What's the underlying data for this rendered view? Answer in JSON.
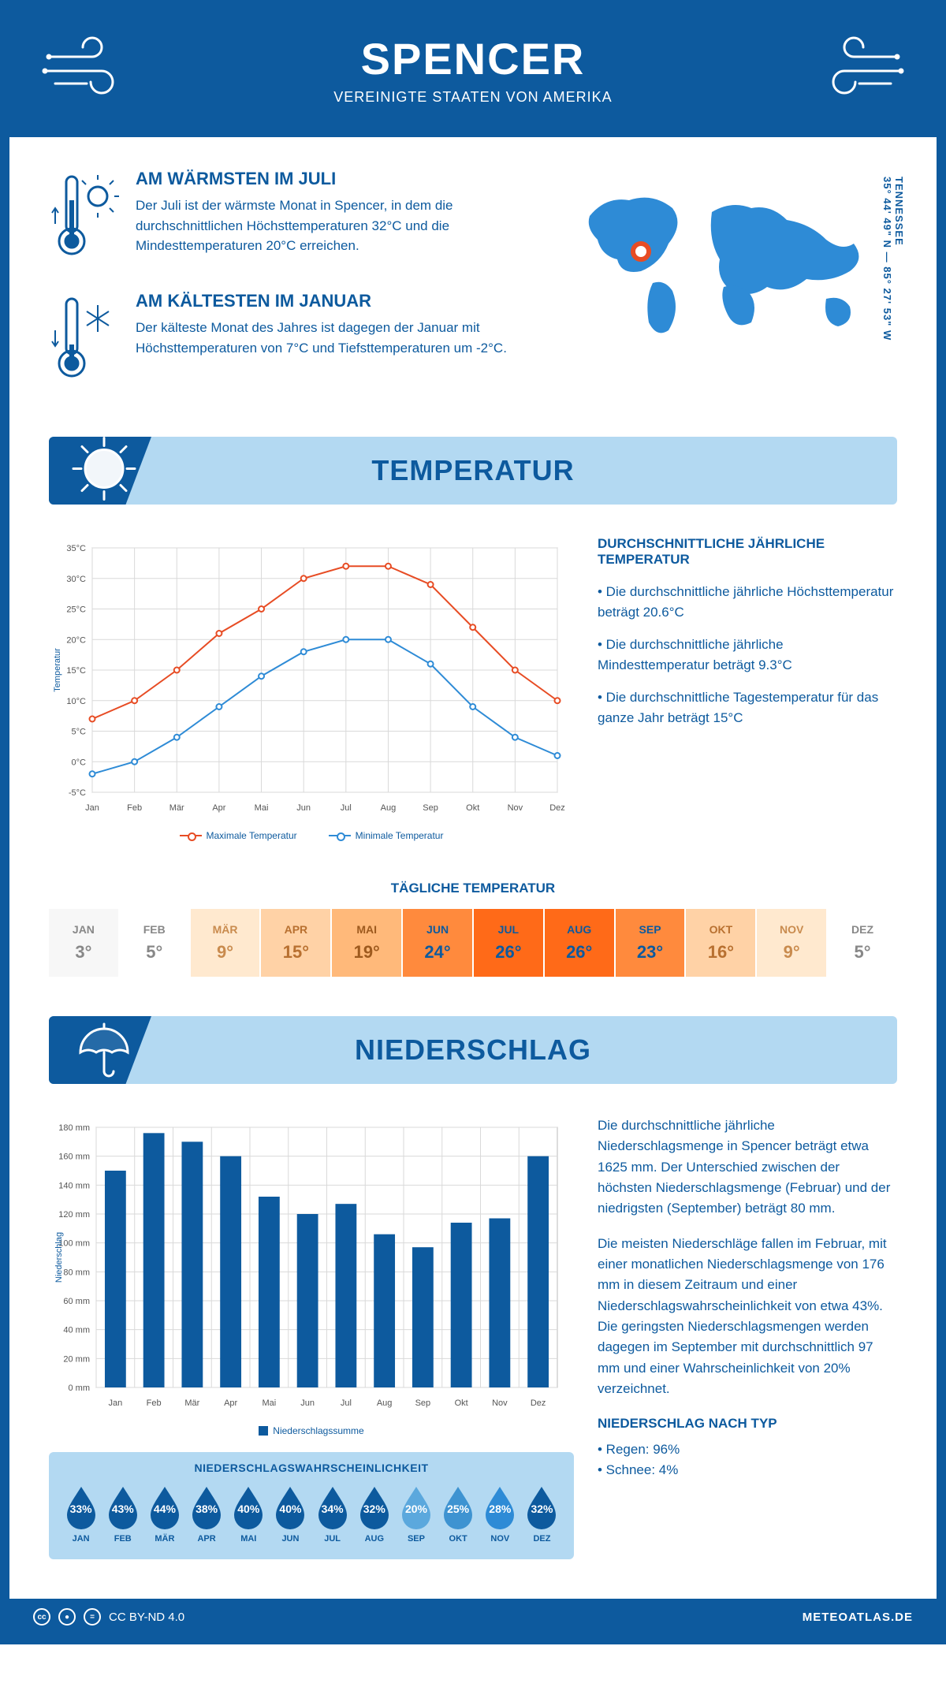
{
  "header": {
    "title": "SPENCER",
    "subtitle": "VEREINIGTE STAATEN VON AMERIKA"
  },
  "location": {
    "state": "TENNESSEE",
    "coords": "35° 44' 49\" N — 85° 27' 53\" W"
  },
  "warmest": {
    "heading": "AM WÄRMSTEN IM JULI",
    "text": "Der Juli ist der wärmste Monat in Spencer, in dem die durchschnittlichen Höchsttemperaturen 32°C und die Mindesttemperaturen 20°C erreichen."
  },
  "coldest": {
    "heading": "AM KÄLTESTEN IM JANUAR",
    "text": "Der kälteste Monat des Jahres ist dagegen der Januar mit Höchsttemperaturen von 7°C und Tiefsttemperaturen um -2°C."
  },
  "sections": {
    "temperature": "TEMPERATUR",
    "precipitation": "NIEDERSCHLAG"
  },
  "temp_chart": {
    "type": "line",
    "months": [
      "Jan",
      "Feb",
      "Mär",
      "Apr",
      "Mai",
      "Jun",
      "Jul",
      "Aug",
      "Sep",
      "Okt",
      "Nov",
      "Dez"
    ],
    "max_series": [
      7,
      10,
      15,
      21,
      25,
      30,
      32,
      32,
      29,
      22,
      15,
      10
    ],
    "min_series": [
      -2,
      0,
      4,
      9,
      14,
      18,
      20,
      20,
      16,
      9,
      4,
      1
    ],
    "max_color": "#e74c24",
    "min_color": "#2e8bd6",
    "grid_color": "#d9d9d9",
    "ylim": [
      -5,
      35
    ],
    "ytick_step": 5,
    "ylabel": "Temperatur",
    "legend_max": "Maximale Temperatur",
    "legend_min": "Minimale Temperatur",
    "marker_radius": 3.5,
    "line_width": 2
  },
  "temp_desc": {
    "heading": "DURCHSCHNITTLICHE JÄHRLICHE TEMPERATUR",
    "b1": "• Die durchschnittliche jährliche Höchsttemperatur beträgt 20.6°C",
    "b2": "• Die durchschnittliche jährliche Mindesttemperatur beträgt 9.3°C",
    "b3": "• Die durchschnittliche Tagestemperatur für das ganze Jahr beträgt 15°C"
  },
  "daily_temp": {
    "title": "TÄGLICHE TEMPERATUR",
    "months": [
      "JAN",
      "FEB",
      "MÄR",
      "APR",
      "MAI",
      "JUN",
      "JUL",
      "AUG",
      "SEP",
      "OKT",
      "NOV",
      "DEZ"
    ],
    "values": [
      "3°",
      "5°",
      "9°",
      "15°",
      "19°",
      "24°",
      "26°",
      "26°",
      "23°",
      "16°",
      "9°",
      "5°"
    ],
    "bg_colors": [
      "#f7f7f7",
      "#ffffff",
      "#ffe9cf",
      "#ffd2a6",
      "#ffb97a",
      "#ff8a3d",
      "#ff6a18",
      "#ff6a18",
      "#ff8a3d",
      "#ffd2a6",
      "#ffe9cf",
      "#ffffff"
    ],
    "text_colors": [
      "#888888",
      "#888888",
      "#c98b4e",
      "#b87030",
      "#9e5a1e",
      "#0d5a9e",
      "#0d5a9e",
      "#0d5a9e",
      "#0d5a9e",
      "#b87030",
      "#c98b4e",
      "#888888"
    ]
  },
  "precip_chart": {
    "type": "bar",
    "months": [
      "Jan",
      "Feb",
      "Mär",
      "Apr",
      "Mai",
      "Jun",
      "Jul",
      "Aug",
      "Sep",
      "Okt",
      "Nov",
      "Dez"
    ],
    "values": [
      150,
      176,
      170,
      160,
      132,
      120,
      127,
      106,
      97,
      114,
      117,
      160
    ],
    "bar_color": "#0d5a9e",
    "grid_color": "#d9d9d9",
    "ylim": [
      0,
      180
    ],
    "ytick_step": 20,
    "ylabel": "Niederschlag",
    "legend": "Niederschlagssumme",
    "bar_width": 0.55
  },
  "precip_desc": {
    "p1": "Die durchschnittliche jährliche Niederschlagsmenge in Spencer beträgt etwa 1625 mm. Der Unterschied zwischen der höchsten Niederschlagsmenge (Februar) und der niedrigsten (September) beträgt 80 mm.",
    "p2": "Die meisten Niederschläge fallen im Februar, mit einer monatlichen Niederschlagsmenge von 176 mm in diesem Zeitraum und einer Niederschlagswahrscheinlichkeit von etwa 43%. Die geringsten Niederschlagsmengen werden dagegen im September mit durchschnittlich 97 mm und einer Wahrscheinlichkeit von 20% verzeichnet.",
    "type_heading": "NIEDERSCHLAG NACH TYP",
    "type1": "• Regen: 96%",
    "type2": "• Schnee: 4%"
  },
  "probability": {
    "title": "NIEDERSCHLAGSWAHRSCHEINLICHKEIT",
    "months": [
      "JAN",
      "FEB",
      "MÄR",
      "APR",
      "MAI",
      "JUN",
      "JUL",
      "AUG",
      "SEP",
      "OKT",
      "NOV",
      "DEZ"
    ],
    "values": [
      "33%",
      "43%",
      "44%",
      "38%",
      "40%",
      "40%",
      "34%",
      "32%",
      "20%",
      "25%",
      "28%",
      "32%"
    ],
    "colors": [
      "#0d5a9e",
      "#0d5a9e",
      "#0d5a9e",
      "#0d5a9e",
      "#0d5a9e",
      "#0d5a9e",
      "#0d5a9e",
      "#0d5a9e",
      "#5ba8dd",
      "#3e93d1",
      "#2e8bd6",
      "#0d5a9e"
    ]
  },
  "footer": {
    "license": "CC BY-ND 4.0",
    "site": "METEOATLAS.DE"
  },
  "colors": {
    "primary": "#0d5a9e",
    "light_blue": "#b3d9f2",
    "accent_red": "#e74c24"
  }
}
